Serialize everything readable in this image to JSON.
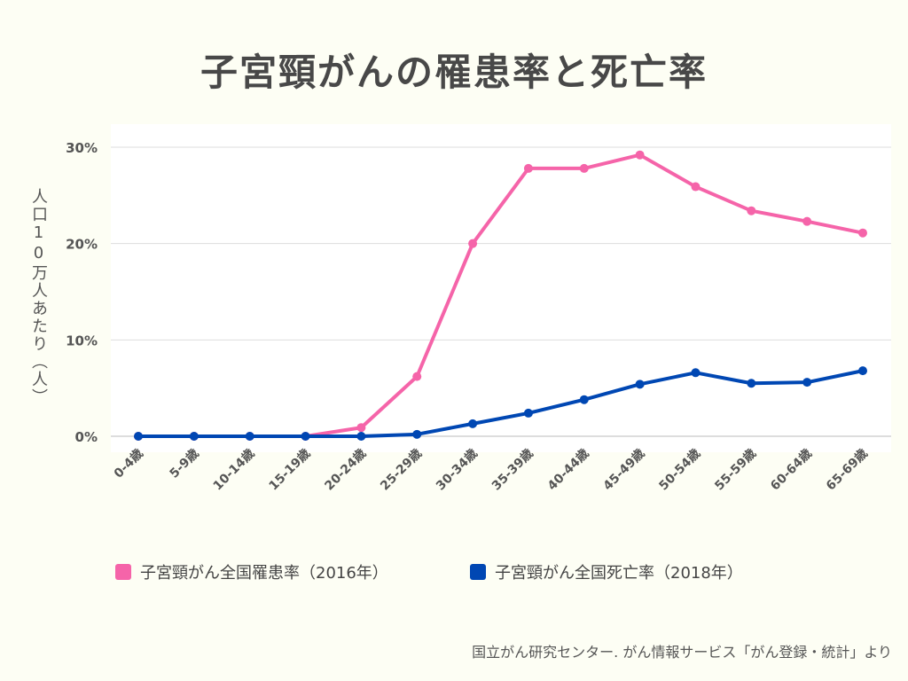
{
  "title": "子宮頸がんの罹患率と死亡率",
  "chart_data": {
    "type": "line",
    "title": "子宮頸がんの罹患率と死亡率",
    "ylabel": "人口10万人あたり（人）",
    "xlabel": "",
    "ylim": [
      0,
      30
    ],
    "yticks": [
      "0%",
      "10%",
      "20%",
      "30%"
    ],
    "ytick_values": [
      0,
      10,
      20,
      30
    ],
    "grid": true,
    "legend_position": "bottom",
    "categories": [
      "0-4歳",
      "5-9歳",
      "10-14歳",
      "15-19歳",
      "20-24歳",
      "25-29歳",
      "30-34歳",
      "35-39歳",
      "40-44歳",
      "45-49歳",
      "50-54歳",
      "55-59歳",
      "60-64歳",
      "65-69歳"
    ],
    "series": [
      {
        "name": "子宮頸がん全国罹患率（2016年）",
        "color": "#f564a9",
        "values": [
          0,
          0,
          0,
          0,
          0.9,
          6.2,
          20.0,
          27.8,
          27.8,
          29.2,
          25.9,
          23.4,
          22.3,
          21.1
        ]
      },
      {
        "name": "子宮頸がん全国死亡率（2018年）",
        "color": "#0047b3",
        "values": [
          0,
          0,
          0,
          0,
          0,
          0.2,
          1.3,
          2.4,
          3.8,
          5.4,
          6.6,
          5.5,
          5.6,
          6.8
        ]
      }
    ]
  },
  "footer": "国立がん研究センター. がん情報サービス「がん登録・統計」より"
}
